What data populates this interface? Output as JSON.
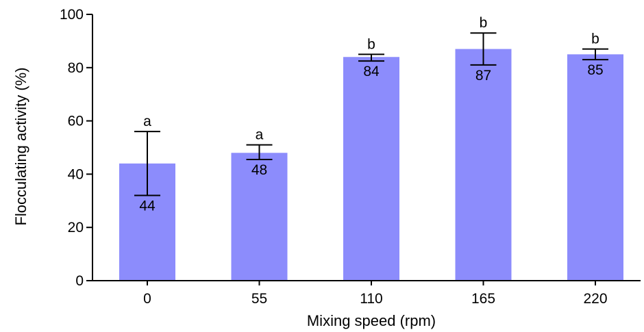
{
  "chart_data": {
    "type": "bar",
    "xlabel": "Mixing speed (rpm)",
    "ylabel": "Flocculating activity (%)",
    "ylim": [
      0,
      100
    ],
    "yticks": [
      "0",
      "20",
      "40",
      "60",
      "80",
      "100"
    ],
    "categories": [
      "0",
      "55",
      "110",
      "165",
      "220"
    ],
    "values": [
      44,
      48,
      84,
      87,
      85
    ],
    "data_labels": [
      "44",
      "48",
      "84",
      "87",
      "85"
    ],
    "error_low": [
      32,
      45.5,
      82.5,
      81,
      83
    ],
    "error_high": [
      56,
      51,
      85,
      93,
      87
    ],
    "significance": [
      "a",
      "a",
      "b",
      "b",
      "b"
    ],
    "bar_color": "#8c8cfc",
    "grid": false
  }
}
